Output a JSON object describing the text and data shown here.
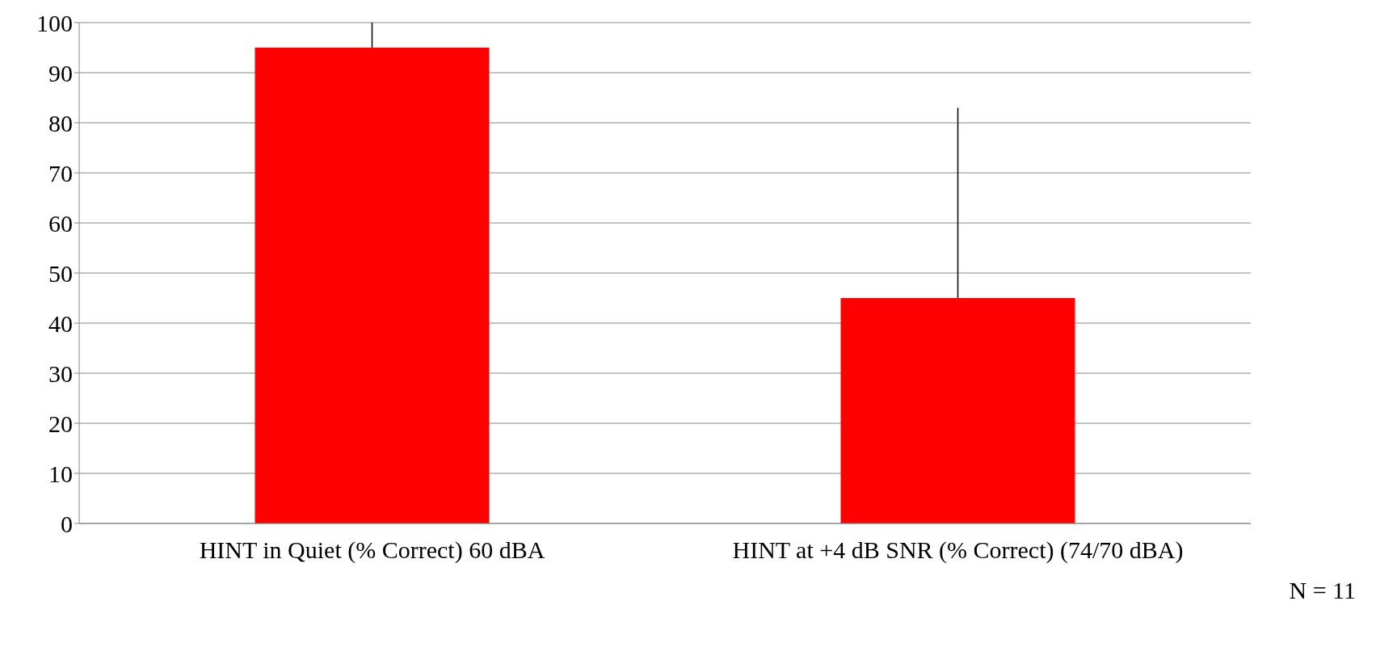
{
  "chart_data": {
    "type": "bar",
    "categories": [
      "HINT in Quiet (% Correct) 60 dBA",
      "HINT at +4 dB SNR (% Correct)  (74/70 dBA)"
    ],
    "series": [
      {
        "color": "#ff0000",
        "values": [
          95,
          45
        ],
        "errors": [
          [
            95,
            100
          ],
          [
            45,
            83
          ]
        ]
      }
    ],
    "ylim": [
      0,
      100
    ],
    "yticks": [
      0,
      10,
      20,
      30,
      40,
      50,
      60,
      70,
      80,
      90,
      100
    ],
    "grid": "y",
    "legend": false,
    "annotations": [
      "N = 11"
    ]
  }
}
